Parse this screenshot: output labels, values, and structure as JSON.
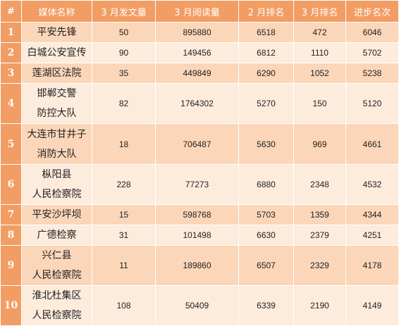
{
  "table": {
    "headers": [
      "#",
      "媒体名称",
      "3 月发文量",
      "3 月阅读量",
      "2 月排名",
      "3 月排名",
      "进步名次"
    ],
    "rows": [
      {
        "rank": "1",
        "name": [
          "平安先锋"
        ],
        "posts": "50",
        "reads": "895880",
        "feb_rank": "6518",
        "mar_rank": "472",
        "improvement": "6046"
      },
      {
        "rank": "2",
        "name": [
          "白城公安宣传"
        ],
        "posts": "90",
        "reads": "149456",
        "feb_rank": "6812",
        "mar_rank": "1110",
        "improvement": "5702"
      },
      {
        "rank": "3",
        "name": [
          "莲湖区法院"
        ],
        "posts": "35",
        "reads": "449849",
        "feb_rank": "6290",
        "mar_rank": "1052",
        "improvement": "5238"
      },
      {
        "rank": "4",
        "name": [
          "邯郸交警",
          "防控大队"
        ],
        "posts": "82",
        "reads": "1764302",
        "feb_rank": "5270",
        "mar_rank": "150",
        "improvement": "5120"
      },
      {
        "rank": "5",
        "name": [
          "大连市甘井子",
          "消防大队"
        ],
        "posts": "18",
        "reads": "706487",
        "feb_rank": "5630",
        "mar_rank": "969",
        "improvement": "4661"
      },
      {
        "rank": "6",
        "name": [
          "枞阳县",
          "人民检察院"
        ],
        "posts": "228",
        "reads": "77273",
        "feb_rank": "6880",
        "mar_rank": "2348",
        "improvement": "4532"
      },
      {
        "rank": "7",
        "name": [
          "平安沙坪坝"
        ],
        "posts": "15",
        "reads": "598768",
        "feb_rank": "5703",
        "mar_rank": "1359",
        "improvement": "4344"
      },
      {
        "rank": "8",
        "name": [
          "广德检察"
        ],
        "posts": "31",
        "reads": "101498",
        "feb_rank": "6630",
        "mar_rank": "2379",
        "improvement": "4251"
      },
      {
        "rank": "9",
        "name": [
          "兴仁县",
          "人民检察院"
        ],
        "posts": "11",
        "reads": "189860",
        "feb_rank": "6507",
        "mar_rank": "2329",
        "improvement": "4178"
      },
      {
        "rank": "10",
        "name": [
          "淮北杜集区",
          "人民检察院"
        ],
        "posts": "108",
        "reads": "50409",
        "feb_rank": "6339",
        "mar_rank": "2190",
        "improvement": "4149"
      }
    ]
  },
  "colors": {
    "header_bg": "#f29d63",
    "row_odd_bg": "#fbd6b9",
    "row_even_bg": "#fdebdc"
  }
}
